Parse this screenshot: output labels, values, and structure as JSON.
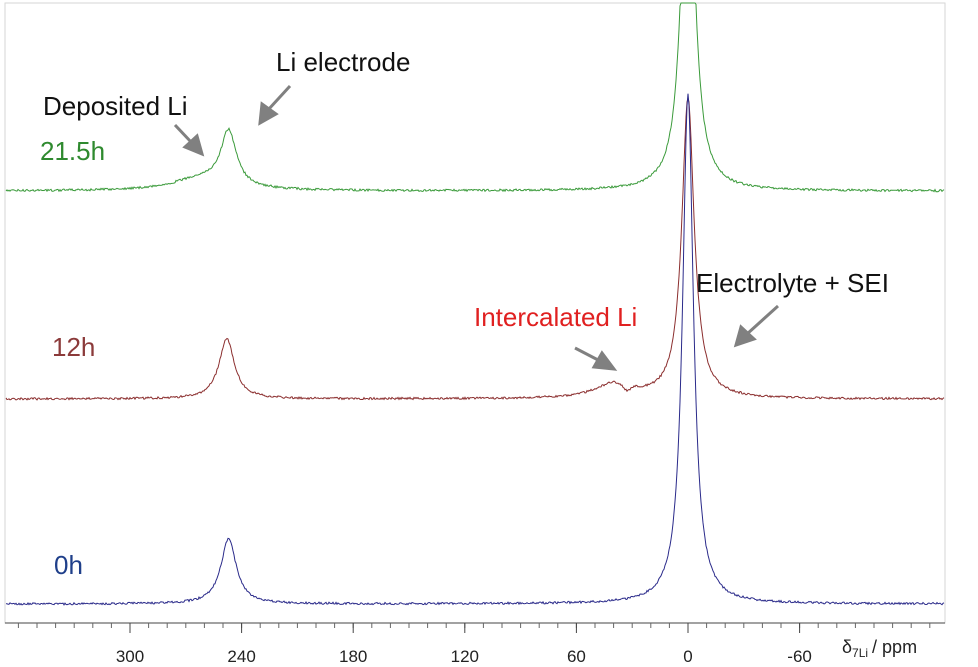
{
  "chart_data": {
    "type": "line",
    "xlabel": {
      "symbol": "δ",
      "subscript": "7Li",
      "unit": "/ ppm"
    },
    "x_reversed": true,
    "xlim": [
      375,
      -90
    ],
    "x_ticks": [
      300,
      240,
      180,
      120,
      60,
      0,
      -60
    ],
    "series": [
      {
        "name": "21.5h",
        "color": "#3a9a3a",
        "label_color": "#2f8a2f",
        "peaks": [
          {
            "center": 247,
            "height": 55,
            "width": 5
          },
          {
            "center": 262,
            "height": 12,
            "width": 18
          },
          {
            "center": 0,
            "height": 400,
            "width": 4
          }
        ]
      },
      {
        "name": "12h",
        "color": "#8b2e2e",
        "label_color": "#8b3a3a",
        "peaks": [
          {
            "center": 248,
            "height": 60,
            "width": 5
          },
          {
            "center": 40,
            "height": 14,
            "width": 12
          },
          {
            "center": 0,
            "height": 300,
            "width": 4
          }
        ]
      },
      {
        "name": "0h",
        "color": "#2a2a8a",
        "label_color": "#1f3f8a",
        "peaks": [
          {
            "center": 247,
            "height": 65,
            "width": 5
          },
          {
            "center": 0,
            "height": 510,
            "width": 3.5
          }
        ]
      }
    ],
    "annotations": [
      {
        "text": "Li electrode",
        "color": "#111111"
      },
      {
        "text": "Deposited Li",
        "color": "#111111"
      },
      {
        "text": "Intercalated Li",
        "color": "#e02020"
      },
      {
        "text": "Electrolyte + SEI",
        "color": "#111111"
      }
    ]
  }
}
